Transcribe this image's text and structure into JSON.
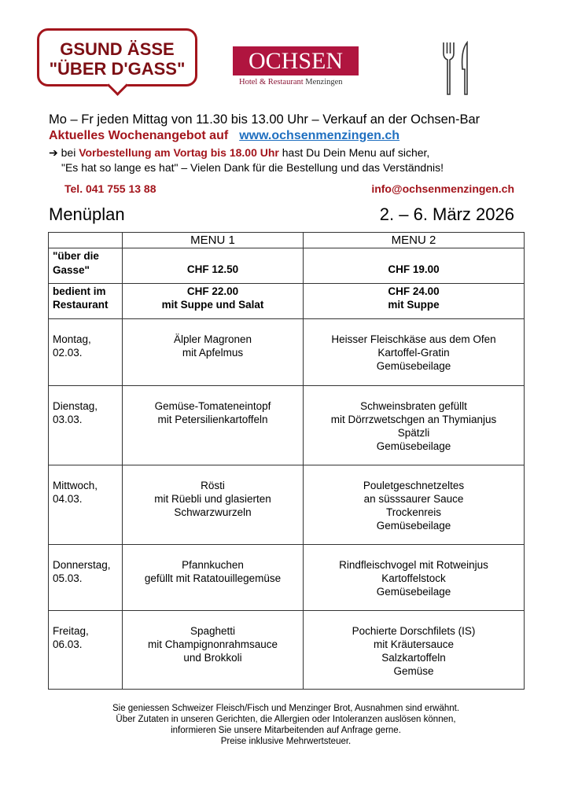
{
  "badge": {
    "line1": "GSUND ÄSSE",
    "line2": "\"ÜBER D'GASS\""
  },
  "logo": {
    "name": "OCHSEN",
    "sub_a": "Hotel & Restaurant",
    "sub_b": "Menzingen"
  },
  "icons": {
    "cutlery": "fork-knife-icon",
    "arrow": "right-arrow-icon"
  },
  "colors": {
    "accent": "#a3151c",
    "logo": "#b0153f",
    "link": "#1f6fc0"
  },
  "info": {
    "hours": "Mo – Fr jeden Mittag von 11.30 bis 13.00 Uhr – Verkauf an der Ochsen-Bar",
    "weekly": "Aktuelles Wochenangebot auf",
    "website": "www.ochsenmenzingen.ch",
    "pre1": "bei ",
    "pre_red": "Vorbestellung am Vortag bis 18.00 Uhr",
    "pre2": " hast Du Dein Menu auf sicher,",
    "thanks": "\"Es hat so lange es hat\" – Vielen Dank für die Bestellung und das Verständnis!",
    "tel": "Tel.  041 755 13 88",
    "email": "info@ochsenmenzingen.ch"
  },
  "title": "Menüplan",
  "date_range": "2. – 6. März 2026",
  "table": {
    "headers": [
      "",
      "MENU 1",
      "MENU 2"
    ],
    "price_rows": [
      {
        "label": "\"über die Gasse\"",
        "m1": [
          "CHF 12.50"
        ],
        "m2": [
          "CHF 19.00"
        ]
      },
      {
        "label": "bedient im Restaurant",
        "m1": [
          "CHF 22.00",
          "mit Suppe und Salat"
        ],
        "m2": [
          "CHF 24.00",
          "mit Suppe"
        ]
      }
    ],
    "days": [
      {
        "day": "Montag,",
        "date": "02.03.",
        "m1": [
          "Älpler Magronen",
          "mit Apfelmus"
        ],
        "m2": [
          "Heisser Fleischkäse aus dem Ofen",
          "Kartoffel-Gratin",
          "Gemüsebeilage"
        ]
      },
      {
        "day": "Dienstag,",
        "date": "03.03.",
        "m1": [
          "Gemüse-Tomateneintopf",
          "mit Petersilienkartoffeln"
        ],
        "m2": [
          "Schweinsbraten gefüllt",
          "mit Dörrzwetschgen an Thymianjus",
          "Spätzli",
          "Gemüsebeilage"
        ]
      },
      {
        "day": "Mittwoch,",
        "date": "04.03.",
        "m1": [
          "Rösti",
          "mit Rüebli und glasierten",
          "Schwarzwurzeln"
        ],
        "m2": [
          "Pouletgeschnetzeltes",
          "an süsssaurer Sauce",
          "Trockenreis",
          "Gemüsebeilage"
        ]
      },
      {
        "day": "Donnerstag,",
        "date": "05.03.",
        "m1": [
          "Pfannkuchen",
          "gefüllt mit Ratatouillegemüse"
        ],
        "m2": [
          "Rindfleischvogel mit Rotweinjus",
          "Kartoffelstock",
          "Gemüsebeilage"
        ]
      },
      {
        "day": "Freitag,",
        "date": "06.03.",
        "m1": [
          "Spaghetti",
          "mit Champignonrahmsauce",
          "und Brokkoli"
        ],
        "m2": [
          "Pochierte Dorschfilets (IS)",
          "mit Kräutersauce",
          "Salzkartoffeln",
          "Gemüse"
        ]
      }
    ]
  },
  "footer": [
    "Sie geniessen Schweizer Fleisch/Fisch und Menzinger Brot, Ausnahmen sind erwähnt.",
    "Über Zutaten in unseren Gerichten, die Allergien oder Intoleranzen auslösen können,",
    "informieren Sie unsere Mitarbeitenden auf Anfrage gerne.",
    "Preise inklusive Mehrwertsteuer."
  ]
}
